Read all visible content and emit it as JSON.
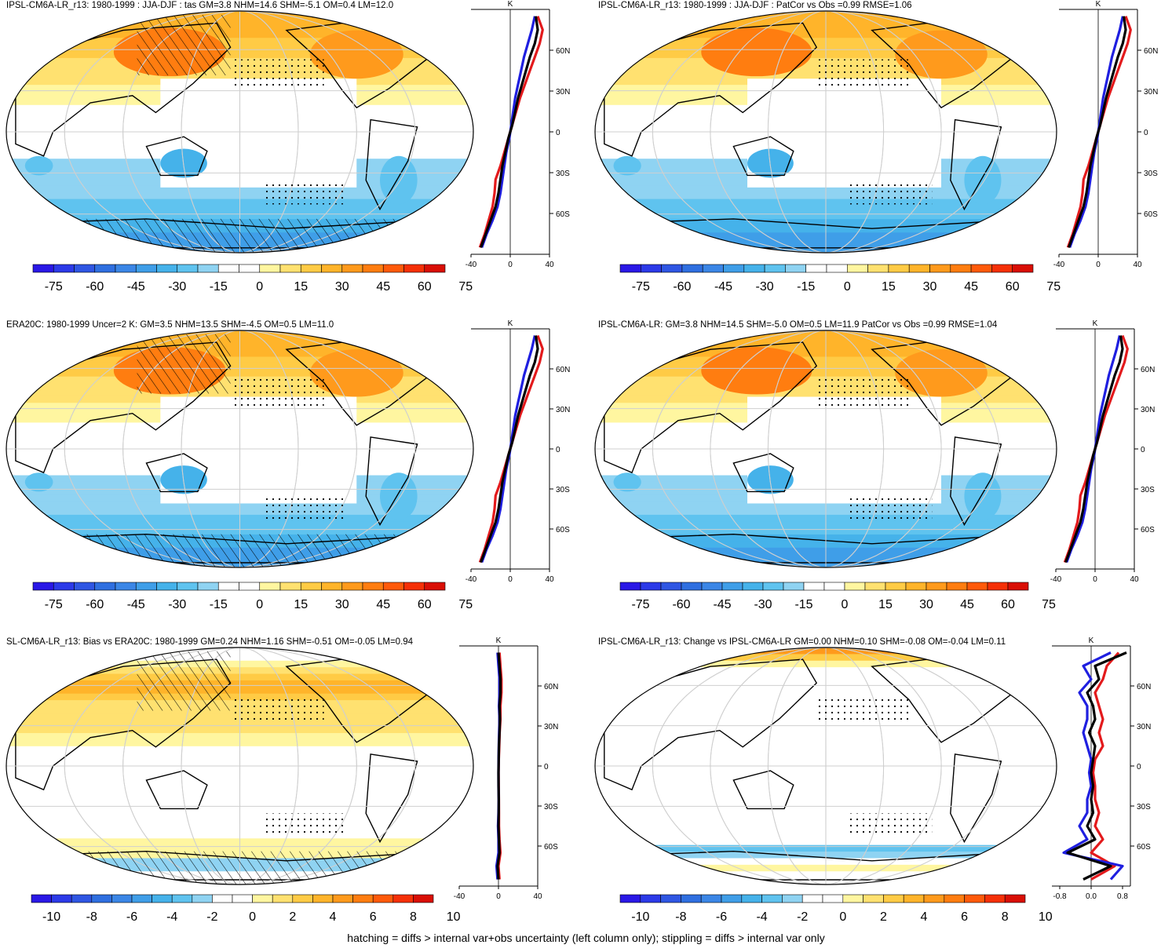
{
  "caption": "hatching = diffs > internal var+obs uncertainty (left column only); stippling = diffs > internal var only",
  "colors": {
    "palette": [
      "#2a18e6",
      "#2c3ae8",
      "#2f56e3",
      "#2f6fe0",
      "#3b86e6",
      "#3f9ee8",
      "#45b2ea",
      "#5fc3ef",
      "#8fd3f2",
      "#ffffff",
      "#ffffff",
      "#fff6a0",
      "#ffe170",
      "#ffcb45",
      "#ffb42a",
      "#ff9a1c",
      "#ff7d10",
      "#ff5a0a",
      "#f53007",
      "#d90f05"
    ],
    "lon_land": "#000000",
    "profile_model": "#000000",
    "profile_jja": "#e31a1c",
    "profile_djf": "#1f1fe0"
  },
  "chart_data": [
    {
      "type": "heatmap",
      "title": "IPSL-CM6A-LR_r13: 1980-1999 : JJA-DJF : tas GM=3.8 NHM=14.6 SHM=-5.1 OM=0.4 LM=12.0",
      "colorbar_ticks": [
        "-75",
        "-60",
        "-45",
        "-30",
        "-15",
        "0",
        "15",
        "30",
        "45",
        "60",
        "75"
      ],
      "lat_ticks": [
        "60N",
        "30N",
        "0",
        "30S",
        "60S"
      ],
      "profile_xticks": [
        "-40",
        "0",
        "40"
      ],
      "profile_unit": "K",
      "profile_xlim": [
        -40,
        40
      ],
      "zonal_mean_profile": {
        "lat": [
          -85,
          -75,
          -65,
          -55,
          -45,
          -35,
          -25,
          -15,
          -5,
          5,
          15,
          25,
          35,
          45,
          55,
          65,
          75,
          85
        ],
        "model": [
          -30,
          -25,
          -20,
          -15,
          -12,
          -10,
          -8,
          -5,
          -2,
          2,
          5,
          8,
          12,
          16,
          20,
          25,
          28,
          26
        ],
        "obs_a": [
          -31,
          -26,
          -22,
          -18,
          -16,
          -15,
          -10,
          -6,
          -2,
          2,
          6,
          10,
          15,
          20,
          25,
          30,
          33,
          28
        ],
        "obs_b": [
          -29,
          -24,
          -18,
          -13,
          -10,
          -8,
          -6,
          -4,
          -1,
          1,
          3,
          5,
          8,
          11,
          14,
          18,
          22,
          25
        ]
      }
    },
    {
      "type": "heatmap",
      "title": "IPSL-CM6A-LR_r13: 1980-1999 : JJA-DJF : PatCor vs Obs =0.99 RMSE=1.06",
      "colorbar_ticks": [
        "-75",
        "-60",
        "-45",
        "-30",
        "-15",
        "0",
        "15",
        "30",
        "45",
        "60",
        "75"
      ],
      "lat_ticks": [
        "60N",
        "30N",
        "0",
        "30S",
        "60S"
      ],
      "profile_xticks": [
        "-40",
        "0",
        "40"
      ],
      "profile_unit": "K",
      "profile_xlim": [
        -40,
        40
      ],
      "zonal_mean_profile": {
        "lat": [
          -85,
          -75,
          -65,
          -55,
          -45,
          -35,
          -25,
          -15,
          -5,
          5,
          15,
          25,
          35,
          45,
          55,
          65,
          75,
          85
        ],
        "model": [
          -30,
          -25,
          -20,
          -15,
          -12,
          -10,
          -8,
          -5,
          -2,
          2,
          5,
          8,
          12,
          16,
          20,
          25,
          28,
          26
        ],
        "obs_a": [
          -31,
          -26,
          -22,
          -18,
          -16,
          -15,
          -10,
          -6,
          -2,
          2,
          6,
          10,
          15,
          20,
          25,
          30,
          33,
          28
        ],
        "obs_b": [
          -29,
          -24,
          -18,
          -13,
          -10,
          -8,
          -6,
          -4,
          -1,
          1,
          3,
          5,
          8,
          11,
          14,
          18,
          22,
          25
        ]
      }
    },
    {
      "type": "heatmap",
      "title": "ERA20C: 1980-1999 Uncer=2 K: GM=3.5 NHM=13.5 SHM=-4.5 OM=0.5 LM=11.0",
      "colorbar_ticks": [
        "-75",
        "-60",
        "-45",
        "-30",
        "-15",
        "0",
        "15",
        "30",
        "45",
        "60",
        "75"
      ],
      "lat_ticks": [
        "60N",
        "30N",
        "0",
        "30S",
        "60S"
      ],
      "profile_xticks": [
        "-40",
        "0",
        "40"
      ],
      "profile_unit": "K",
      "profile_xlim": [
        -40,
        40
      ],
      "zonal_mean_profile": {
        "lat": [
          -85,
          -75,
          -65,
          -55,
          -45,
          -35,
          -25,
          -15,
          -5,
          5,
          15,
          25,
          35,
          45,
          55,
          65,
          75,
          85
        ],
        "model": [
          -30,
          -25,
          -20,
          -15,
          -12,
          -10,
          -8,
          -5,
          -2,
          2,
          5,
          8,
          12,
          16,
          20,
          25,
          28,
          26
        ],
        "obs_a": [
          -31,
          -26,
          -22,
          -18,
          -16,
          -15,
          -10,
          -6,
          -2,
          2,
          6,
          10,
          15,
          20,
          25,
          30,
          33,
          28
        ],
        "obs_b": [
          -29,
          -24,
          -18,
          -13,
          -10,
          -8,
          -6,
          -4,
          -1,
          1,
          3,
          5,
          8,
          11,
          14,
          18,
          22,
          25
        ]
      }
    },
    {
      "type": "heatmap",
      "title": "IPSL-CM6A-LR: GM=3.8 NHM=14.5 SHM=-5.0 OM=0.5 LM=11.9 PatCor vs Obs =0.99 RMSE=1.04",
      "colorbar_ticks": [
        "-75",
        "-60",
        "-45",
        "-30",
        "-15",
        "0",
        "15",
        "30",
        "45",
        "60",
        "75"
      ],
      "lat_ticks": [
        "60N",
        "30N",
        "0",
        "30S",
        "60S"
      ],
      "profile_xticks": [
        "-40",
        "0",
        "40"
      ],
      "profile_unit": "K",
      "profile_xlim": [
        -40,
        40
      ],
      "zonal_mean_profile": {
        "lat": [
          -85,
          -75,
          -65,
          -55,
          -45,
          -35,
          -25,
          -15,
          -5,
          5,
          15,
          25,
          35,
          45,
          55,
          65,
          75,
          85
        ],
        "model": [
          -30,
          -25,
          -20,
          -15,
          -12,
          -10,
          -8,
          -5,
          -2,
          2,
          5,
          8,
          12,
          16,
          20,
          25,
          28,
          26
        ],
        "obs_a": [
          -31,
          -26,
          -22,
          -18,
          -16,
          -15,
          -10,
          -6,
          -2,
          2,
          6,
          10,
          15,
          20,
          25,
          30,
          33,
          28
        ],
        "obs_b": [
          -29,
          -24,
          -18,
          -13,
          -10,
          -8,
          -6,
          -4,
          -1,
          1,
          3,
          5,
          8,
          11,
          14,
          18,
          22,
          25
        ]
      }
    },
    {
      "type": "heatmap",
      "title": "SL-CM6A-LR_r13: Bias vs ERA20C: 1980-1999 GM=0.24 NHM=1.16 SHM=-0.51 OM=-0.05 LM=0.94",
      "colorbar_ticks": [
        "-10",
        "-8",
        "-6",
        "-4",
        "-2",
        "0",
        "2",
        "4",
        "6",
        "8",
        "10"
      ],
      "lat_ticks": [
        "60N",
        "30N",
        "0",
        "30S",
        "60S"
      ],
      "profile_xticks": [
        "-40",
        "0",
        "40"
      ],
      "profile_unit": "K",
      "profile_xlim": [
        -40,
        40
      ],
      "zonal_mean_profile": {
        "lat": [
          -85,
          -75,
          -65,
          -55,
          -45,
          -35,
          -25,
          -15,
          -5,
          5,
          15,
          25,
          35,
          45,
          55,
          65,
          75,
          85
        ],
        "model": [
          0,
          -1,
          1,
          0.5,
          0,
          0.2,
          0.3,
          0.1,
          0,
          0.2,
          0.5,
          1,
          1.5,
          1,
          2,
          2,
          1,
          0
        ],
        "obs_a": [
          1,
          0,
          2,
          1,
          0.5,
          0.5,
          0.4,
          0.2,
          0.1,
          0.3,
          0.8,
          1.2,
          2,
          2,
          3,
          3,
          2,
          1
        ],
        "obs_b": [
          -1,
          -2,
          0,
          0,
          -0.5,
          0,
          0.2,
          0,
          0,
          0.1,
          0.3,
          0.6,
          1,
          0.5,
          1,
          1,
          0,
          -1
        ]
      }
    },
    {
      "type": "heatmap",
      "title": "IPSL-CM6A-LR_r13: Change vs IPSL-CM6A-LR GM=0.00 NHM=0.10 SHM=-0.08 OM=-0.04 LM=0.11",
      "colorbar_ticks": [
        "-10",
        "-8",
        "-6",
        "-4",
        "-2",
        "0",
        "2",
        "4",
        "6",
        "8",
        "10"
      ],
      "lat_ticks": [
        "60N",
        "30N",
        "0",
        "30S",
        "60S"
      ],
      "profile_xticks": [
        "-0.8",
        "0.0",
        "0.8"
      ],
      "profile_unit": "K",
      "profile_xlim": [
        -1,
        1
      ],
      "zonal_mean_profile": {
        "lat": [
          -85,
          -75,
          -65,
          -55,
          -45,
          -35,
          -25,
          -15,
          -5,
          5,
          15,
          25,
          35,
          45,
          55,
          65,
          75,
          85
        ],
        "model": [
          -0.2,
          0.5,
          -0.6,
          0.1,
          -0.1,
          0.05,
          0,
          0.05,
          0,
          0.05,
          0.1,
          -0.05,
          0.1,
          0.05,
          -0.1,
          0.2,
          0.1,
          0.9
        ],
        "obs_a": [
          0,
          0.6,
          0,
          0.3,
          0.1,
          0.2,
          0.1,
          0.1,
          0.05,
          0.1,
          0.3,
          0.2,
          0.3,
          0.2,
          0.1,
          0.3,
          0.4,
          0.7
        ],
        "obs_b": [
          0.5,
          0.8,
          -0.7,
          -0.1,
          -0.3,
          -0.1,
          -0.1,
          0,
          -0.05,
          0,
          -0.1,
          -0.2,
          -0.1,
          -0.1,
          -0.3,
          0,
          -0.2,
          0.5
        ]
      }
    }
  ]
}
